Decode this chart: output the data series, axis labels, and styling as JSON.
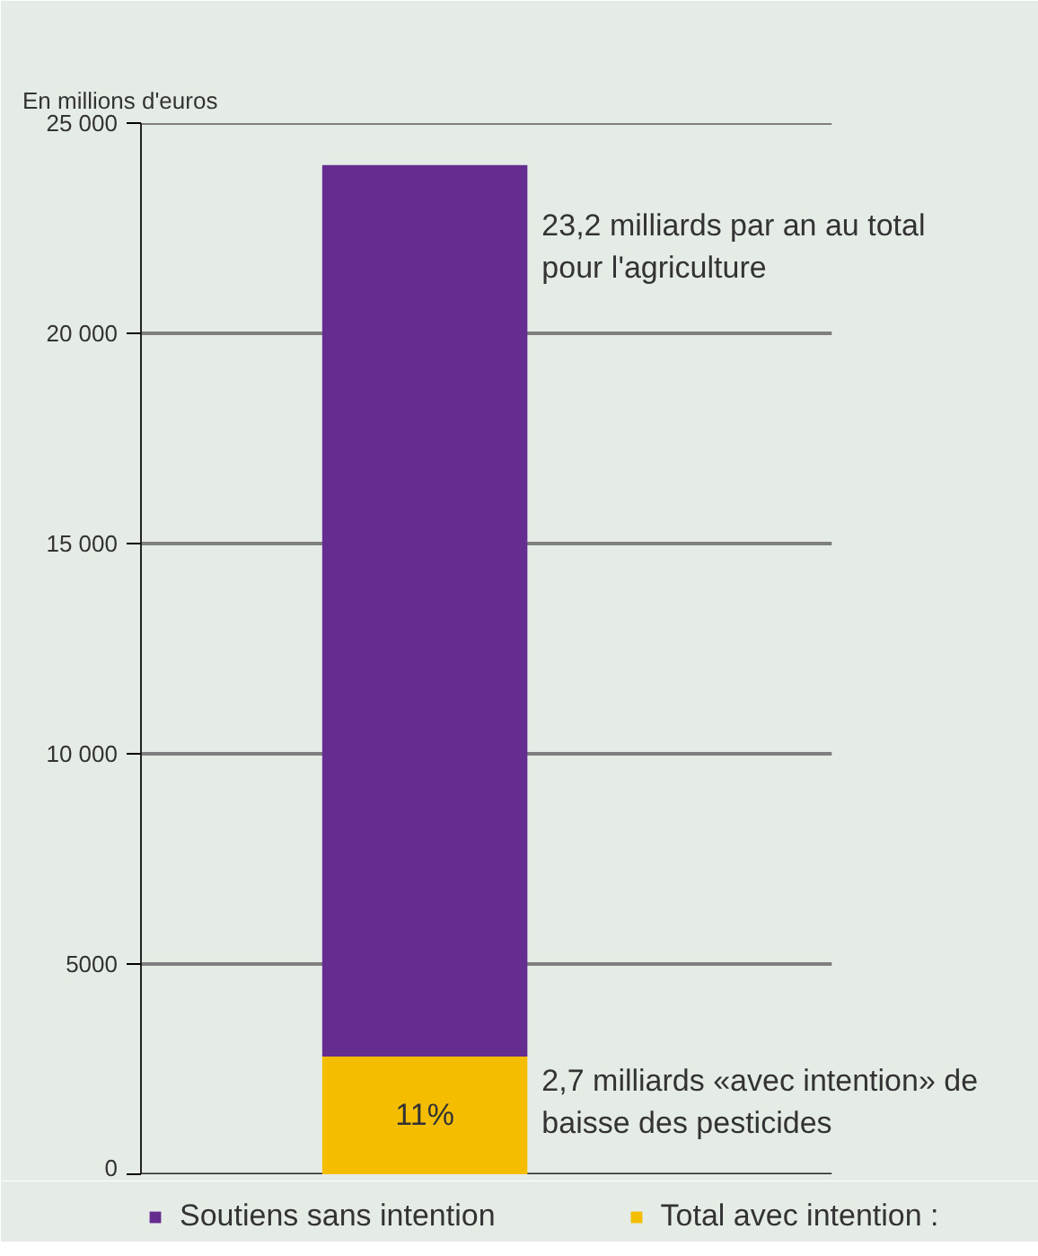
{
  "chart_data": {
    "type": "bar",
    "stacked": true,
    "ylabel": "En millions d'euros",
    "categories": [
      null
    ],
    "series": [
      {
        "name": "Total avec intention :",
        "color": "#f5bd00",
        "values": [
          2800
        ]
      },
      {
        "name": "Soutiens sans intention",
        "color": "#652d90",
        "values": [
          21200
        ]
      }
    ],
    "ylim": [
      0,
      25000
    ],
    "yticks": [
      0,
      5000,
      {
        "value": 10000,
        "label": "10 000"
      },
      {
        "value": 15000,
        "label": "15 000"
      },
      {
        "value": 20000,
        "label": "20 000"
      },
      {
        "value": 25000,
        "label": "25 000"
      }
    ],
    "grid": "y",
    "legend": "bottom",
    "annotations": [
      "23,2 milliards par an au total\npour l'agriculture",
      "2,7 milliards «avec intention» de\nbaisse des pesticides",
      "11%"
    ]
  }
}
